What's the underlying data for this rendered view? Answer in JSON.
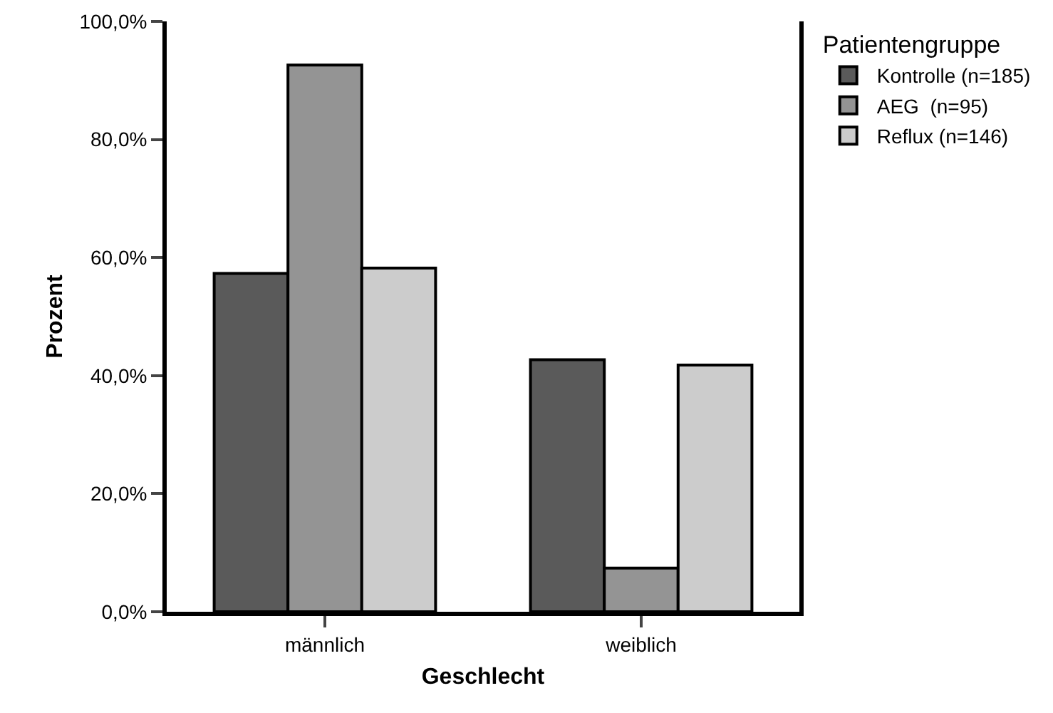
{
  "chart_data": {
    "type": "bar",
    "xlabel": "Geschlecht",
    "ylabel": "Prozent",
    "legend_title": "Patientengruppe",
    "categories": [
      "männlich",
      "weiblich"
    ],
    "series": [
      {
        "name": "Kontrolle (n=185)",
        "color": "#5a5a5a",
        "values": [
          57.3,
          42.7
        ]
      },
      {
        "name": "AEG  (n=95)",
        "color": "#949494",
        "values": [
          92.6,
          7.4
        ]
      },
      {
        "name": "Reflux (n=146)",
        "color": "#cccccc",
        "values": [
          58.2,
          41.8
        ]
      }
    ],
    "ylim": [
      0,
      100
    ],
    "yticks": [
      {
        "value": 0,
        "label": "0,0%"
      },
      {
        "value": 20,
        "label": "20,0%"
      },
      {
        "value": 40,
        "label": "40,0%"
      },
      {
        "value": 60,
        "label": "60,0%"
      },
      {
        "value": 80,
        "label": "80,0%"
      },
      {
        "value": 100,
        "label": "100,0%"
      }
    ],
    "grid": false,
    "legend": "top right"
  }
}
